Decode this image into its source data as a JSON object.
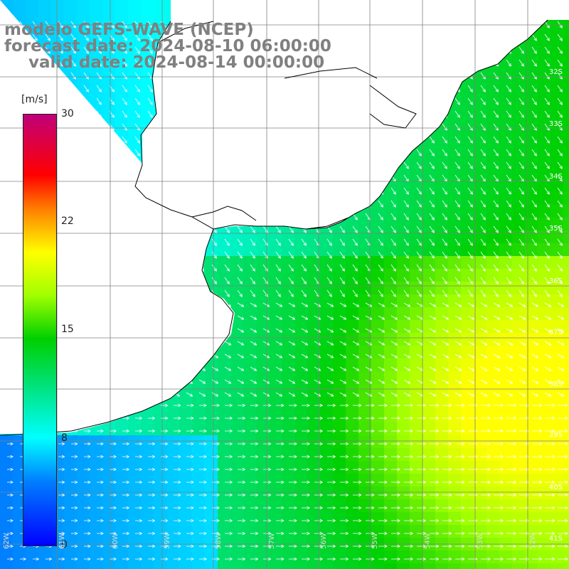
{
  "title": {
    "model": "modelo GEFS-WAVE (NCEP)",
    "forecast": "forecast date: 2024-08-10 06:00:00",
    "valid": "valid date: 2024-08-14 00:00:00"
  },
  "colorbar": {
    "unit": "[m/s]",
    "ticks": [
      "30",
      "22",
      "15",
      "8",
      "0"
    ],
    "min": 0,
    "max": 30,
    "colors": [
      "#0000ff",
      "#0080ff",
      "#00ffff",
      "#00e070",
      "#00d000",
      "#a0ff00",
      "#ffff00",
      "#ff8000",
      "#ff0000",
      "#c0007a"
    ]
  },
  "map": {
    "latitude_labels": [
      "32S",
      "33S",
      "34S",
      "35S",
      "36S",
      "37S",
      "38S",
      "39S",
      "40S",
      "41S"
    ],
    "longitude_labels": [
      "62W",
      "61W",
      "60W",
      "59W",
      "58W",
      "57W",
      "56W",
      "55W",
      "54W",
      "53W",
      "52W"
    ],
    "land_color": "#ffffff",
    "coast_color": "#000000",
    "grid_color": "#808080",
    "arrow_color": "#ffffff"
  }
}
